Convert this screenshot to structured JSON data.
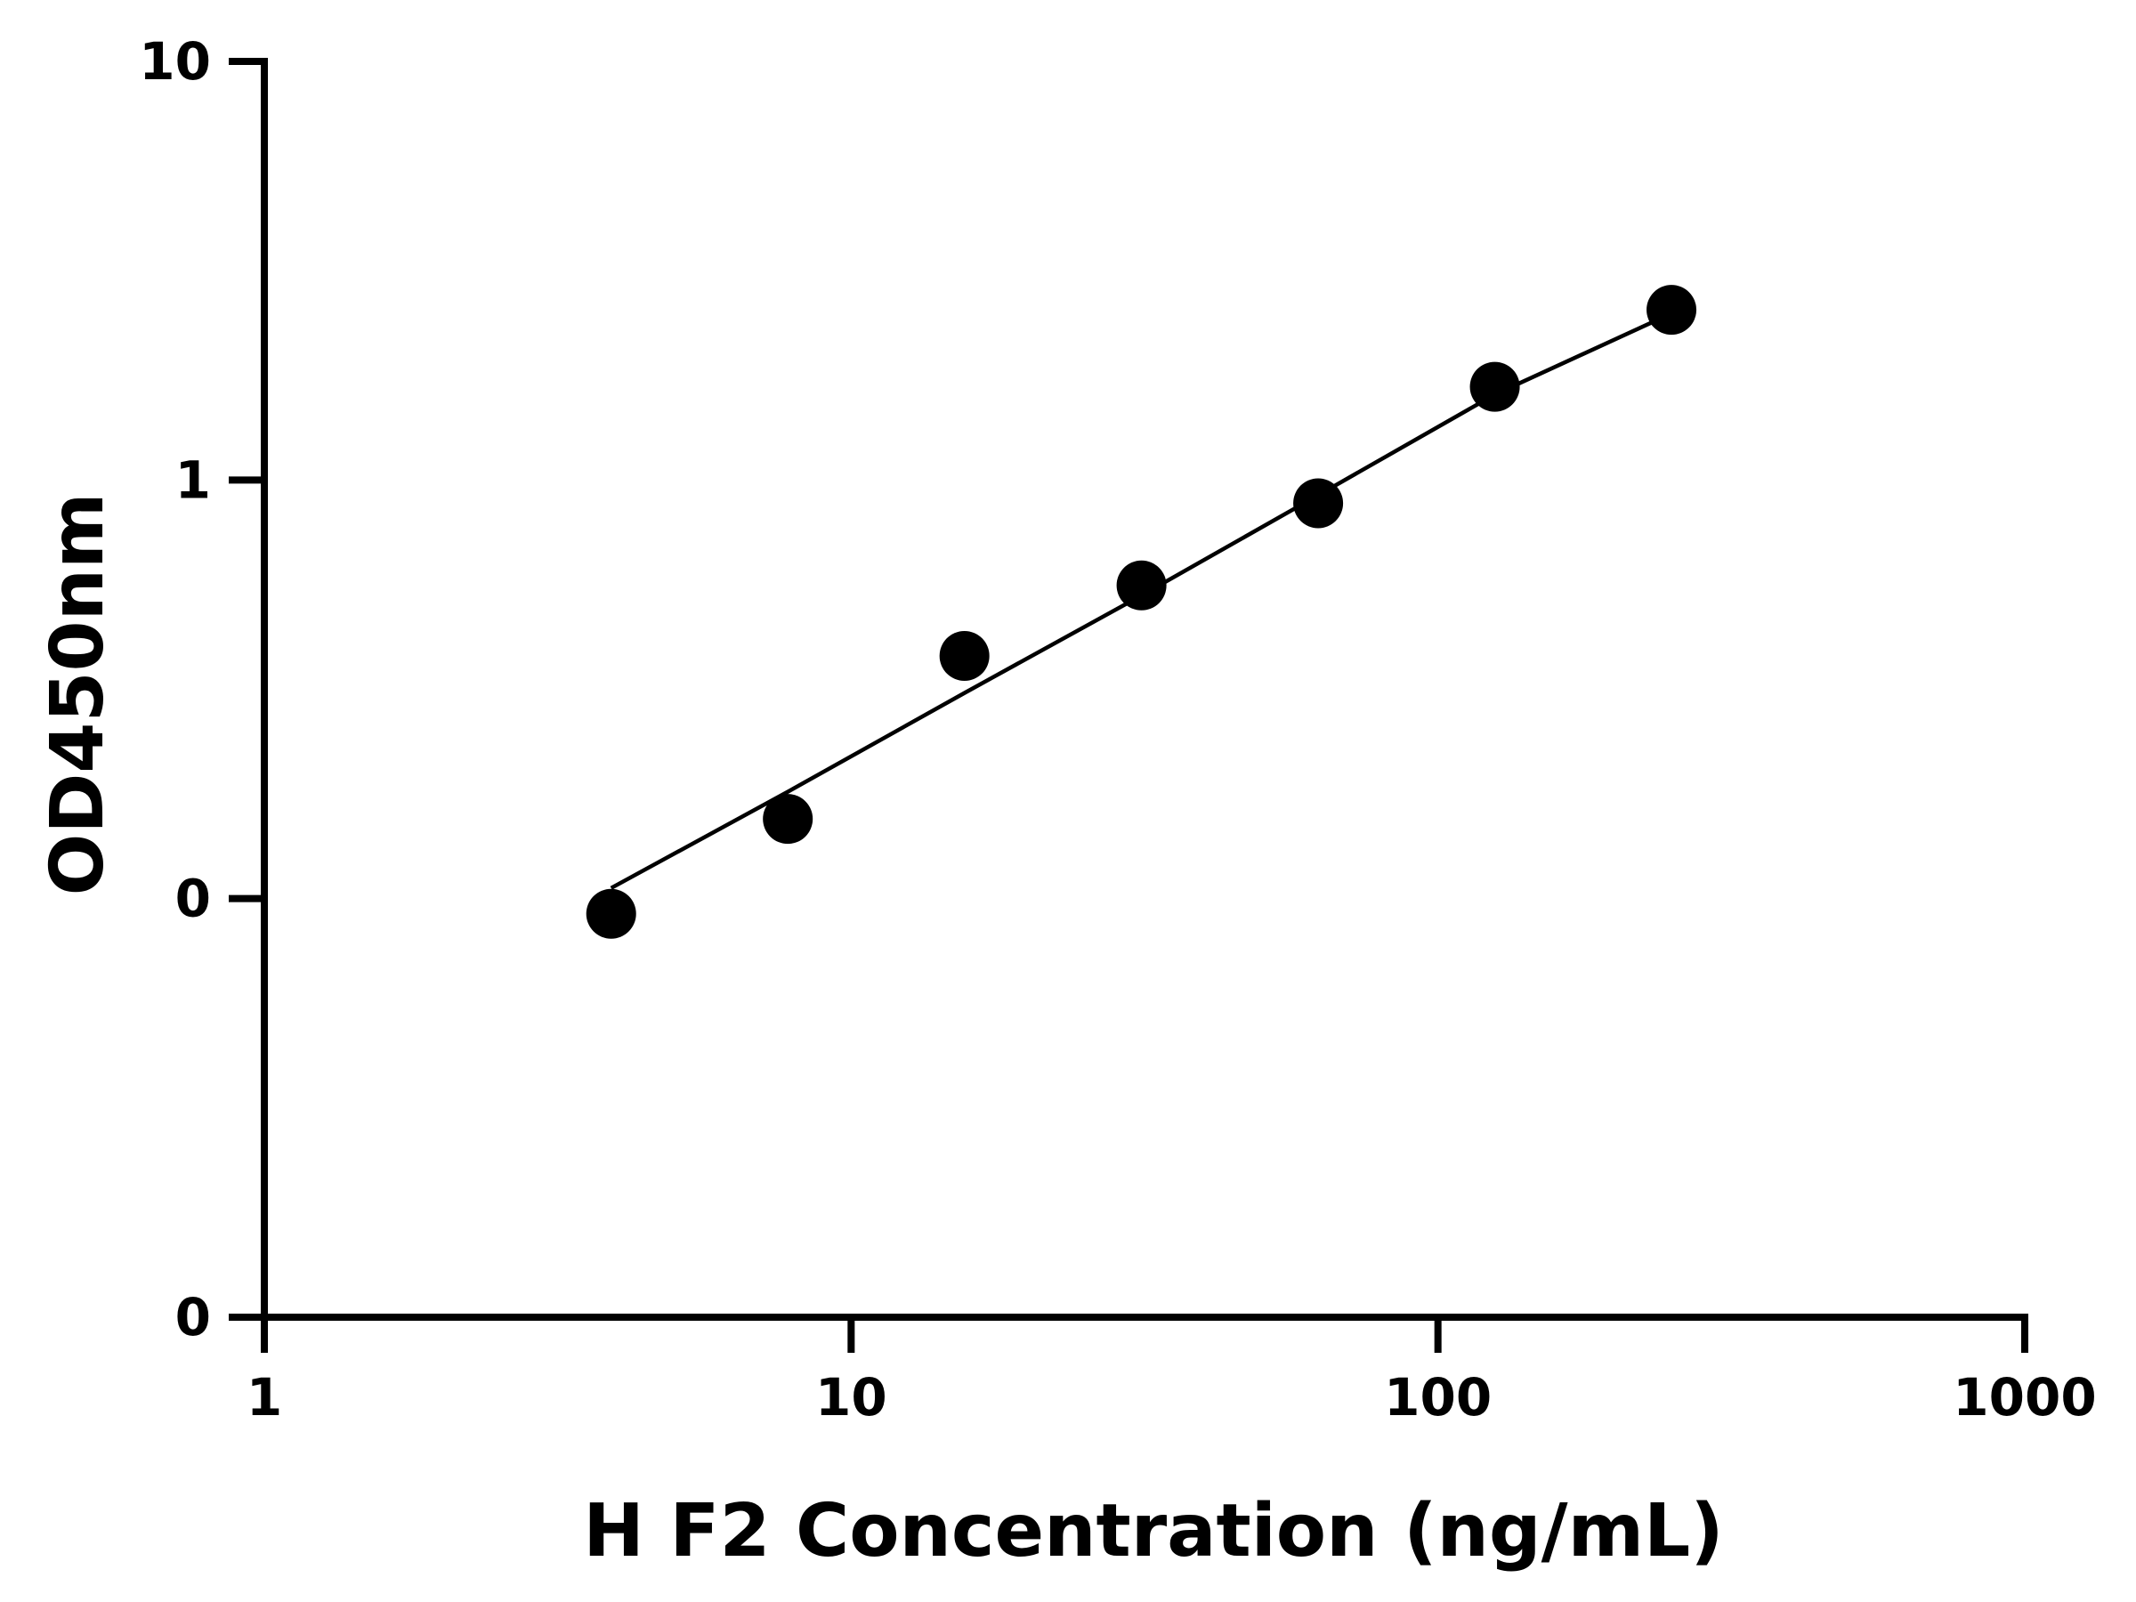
{
  "chart_data": {
    "type": "scatter",
    "x_scale": "log",
    "y_scale": "log",
    "xlim": [
      1,
      1000
    ],
    "ylim": [
      0.01,
      10
    ],
    "x_ticks": [
      1,
      10,
      100,
      1000
    ],
    "x_tick_labels": [
      "1",
      "10",
      "100",
      "1000"
    ],
    "y_ticks": [
      0.01,
      0.1,
      1,
      10
    ],
    "y_tick_labels": [
      "0",
      "0",
      "1",
      "10"
    ],
    "xlabel": "H F2 Concentration (ng/mL)",
    "ylabel": "OD450nm",
    "title": "",
    "grid": false,
    "series": [
      {
        "points": [
          {
            "x": 3.9,
            "y": 0.092
          },
          {
            "x": 7.8,
            "y": 0.155
          },
          {
            "x": 15.6,
            "y": 0.38
          },
          {
            "x": 31.25,
            "y": 0.56
          },
          {
            "x": 62.5,
            "y": 0.88
          },
          {
            "x": 125,
            "y": 1.67
          },
          {
            "x": 250,
            "y": 2.55
          }
        ],
        "fit_line": [
          {
            "x": 3.9,
            "y": 0.106
          },
          {
            "x": 7.8,
            "y": 0.18
          },
          {
            "x": 15.6,
            "y": 0.31
          },
          {
            "x": 31.25,
            "y": 0.53
          },
          {
            "x": 62.5,
            "y": 0.92
          },
          {
            "x": 125,
            "y": 1.6
          },
          {
            "x": 250,
            "y": 2.5
          }
        ]
      }
    ]
  }
}
